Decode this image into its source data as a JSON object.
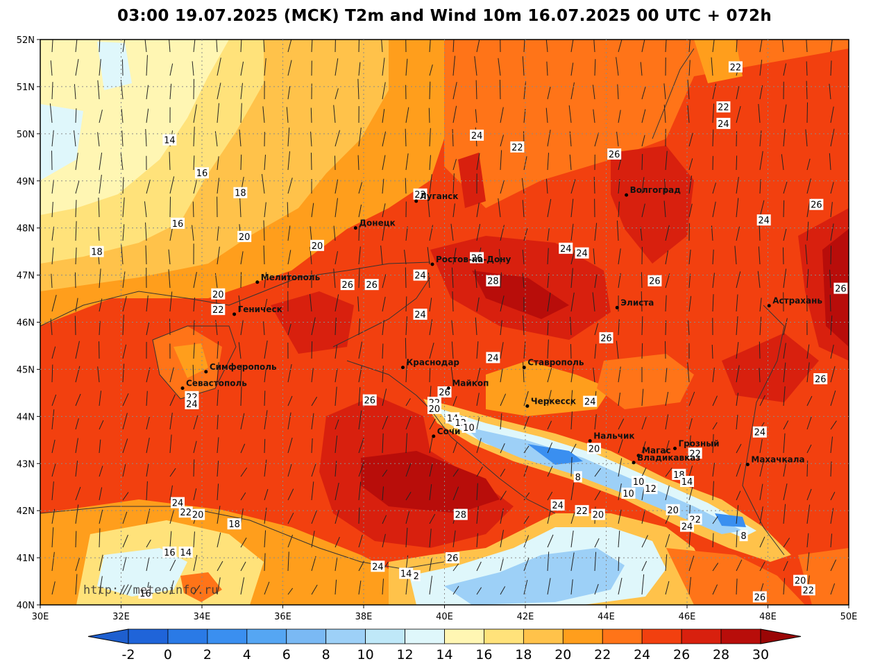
{
  "title": "03:00 19.07.2025 (MCK) T2m and Wind 10m 16.07.2025 00 UTC + 072h",
  "credit": "http://meteoinfo.ru",
  "lat_labels": [
    "52N",
    "51N",
    "50N",
    "49N",
    "48N",
    "47N",
    "46N",
    "45N",
    "44N",
    "43N",
    "42N",
    "41N",
    "40N"
  ],
  "lon_labels": [
    "30E",
    "32E",
    "34E",
    "36E",
    "38E",
    "40E",
    "42E",
    "44E",
    "46E",
    "48E",
    "50E"
  ],
  "cities": [
    {
      "name": "Луганск",
      "lon": 39.3,
      "lat": 48.57
    },
    {
      "name": "Донецк",
      "lon": 37.8,
      "lat": 48.0
    },
    {
      "name": "Волгоград",
      "lon": 44.5,
      "lat": 48.7
    },
    {
      "name": "Ростов-на-Дону",
      "lon": 39.7,
      "lat": 47.23
    },
    {
      "name": "Мелитополь",
      "lon": 35.37,
      "lat": 46.85
    },
    {
      "name": "Геническ",
      "lon": 34.8,
      "lat": 46.17
    },
    {
      "name": "Элиста",
      "lon": 44.27,
      "lat": 46.31
    },
    {
      "name": "Астрахань",
      "lon": 48.03,
      "lat": 46.35
    },
    {
      "name": "Симферополь",
      "lon": 34.1,
      "lat": 44.95
    },
    {
      "name": "Краснодар",
      "lon": 38.97,
      "lat": 45.04
    },
    {
      "name": "Ставрополь",
      "lon": 41.97,
      "lat": 45.04
    },
    {
      "name": "Севастополь",
      "lon": 33.52,
      "lat": 44.6
    },
    {
      "name": "Майкоп",
      "lon": 40.1,
      "lat": 44.6
    },
    {
      "name": "Черкесск",
      "lon": 42.05,
      "lat": 44.22
    },
    {
      "name": "Нальчик",
      "lon": 43.6,
      "lat": 43.48
    },
    {
      "name": "Магас",
      "lon": 44.8,
      "lat": 43.17
    },
    {
      "name": "Грозный",
      "lon": 45.7,
      "lat": 43.32
    },
    {
      "name": "Владикавказ",
      "lon": 44.68,
      "lat": 43.02
    },
    {
      "name": "Махачкала",
      "lon": 47.5,
      "lat": 42.98
    },
    {
      "name": "Сочи",
      "lon": 39.73,
      "lat": 43.58
    }
  ],
  "contour_labels": [
    {
      "t": "14",
      "lon": 33.2,
      "lat": 49.87
    },
    {
      "t": "16",
      "lon": 34.0,
      "lat": 49.17
    },
    {
      "t": "18",
      "lon": 34.95,
      "lat": 48.75
    },
    {
      "t": "16",
      "lon": 33.4,
      "lat": 48.1
    },
    {
      "t": "18",
      "lon": 31.4,
      "lat": 47.5
    },
    {
      "t": "20",
      "lon": 35.05,
      "lat": 47.82
    },
    {
      "t": "20",
      "lon": 36.85,
      "lat": 47.63
    },
    {
      "t": "20",
      "lon": 34.4,
      "lat": 46.6
    },
    {
      "t": "22",
      "lon": 34.4,
      "lat": 46.27
    },
    {
      "t": "26",
      "lon": 37.6,
      "lat": 46.8
    },
    {
      "t": "26",
      "lon": 38.2,
      "lat": 46.8
    },
    {
      "t": "24",
      "lon": 39.4,
      "lat": 47.0
    },
    {
      "t": "24",
      "lon": 39.4,
      "lat": 46.17
    },
    {
      "t": "22",
      "lon": 39.4,
      "lat": 48.72
    },
    {
      "t": "24",
      "lon": 40.8,
      "lat": 49.97
    },
    {
      "t": "22",
      "lon": 41.8,
      "lat": 49.72
    },
    {
      "t": "26",
      "lon": 40.8,
      "lat": 47.37
    },
    {
      "t": "28",
      "lon": 41.2,
      "lat": 46.88
    },
    {
      "t": "24",
      "lon": 43.0,
      "lat": 47.57
    },
    {
      "t": "24",
      "lon": 43.4,
      "lat": 47.47
    },
    {
      "t": "26",
      "lon": 44.2,
      "lat": 49.57
    },
    {
      "t": "22",
      "lon": 46.9,
      "lat": 50.57
    },
    {
      "t": "24",
      "lon": 46.9,
      "lat": 50.22
    },
    {
      "t": "22",
      "lon": 47.2,
      "lat": 51.42
    },
    {
      "t": "26",
      "lon": 49.2,
      "lat": 48.5
    },
    {
      "t": "24",
      "lon": 47.9,
      "lat": 48.17
    },
    {
      "t": "26",
      "lon": 45.2,
      "lat": 46.88
    },
    {
      "t": "26",
      "lon": 49.8,
      "lat": 46.72
    },
    {
      "t": "26",
      "lon": 44.0,
      "lat": 45.67
    },
    {
      "t": "24",
      "lon": 41.2,
      "lat": 45.25
    },
    {
      "t": "24",
      "lon": 43.6,
      "lat": 44.32
    },
    {
      "t": "26",
      "lon": 49.3,
      "lat": 44.8
    },
    {
      "t": "24",
      "lon": 47.8,
      "lat": 43.67
    },
    {
      "t": "22",
      "lon": 46.2,
      "lat": 43.22
    },
    {
      "t": "20",
      "lon": 43.7,
      "lat": 43.32
    },
    {
      "t": "8",
      "lon": 43.3,
      "lat": 42.72
    },
    {
      "t": "10",
      "lon": 44.8,
      "lat": 42.62
    },
    {
      "t": "12",
      "lon": 45.1,
      "lat": 42.47
    },
    {
      "t": "10",
      "lon": 44.55,
      "lat": 42.37
    },
    {
      "t": "18",
      "lon": 45.8,
      "lat": 42.77
    },
    {
      "t": "14",
      "lon": 46.0,
      "lat": 42.62
    },
    {
      "t": "20",
      "lon": 45.65,
      "lat": 42.02
    },
    {
      "t": "22",
      "lon": 46.2,
      "lat": 41.82
    },
    {
      "t": "24",
      "lon": 46.0,
      "lat": 41.67
    },
    {
      "t": "8",
      "lon": 47.4,
      "lat": 41.47
    },
    {
      "t": "24",
      "lon": 42.8,
      "lat": 42.12
    },
    {
      "t": "22",
      "lon": 43.4,
      "lat": 42.0
    },
    {
      "t": "20",
      "lon": 43.8,
      "lat": 41.92
    },
    {
      "t": "28",
      "lon": 40.4,
      "lat": 41.92
    },
    {
      "t": "26",
      "lon": 40.2,
      "lat": 41.0
    },
    {
      "t": "24",
      "lon": 38.35,
      "lat": 40.82
    },
    {
      "t": "14",
      "lon": 39.05,
      "lat": 40.67
    },
    {
      "t": "2",
      "lon": 39.3,
      "lat": 40.62
    },
    {
      "t": "20",
      "lon": 48.8,
      "lat": 40.52
    },
    {
      "t": "22",
      "lon": 49.0,
      "lat": 40.32
    },
    {
      "t": "26",
      "lon": 47.8,
      "lat": 40.17
    },
    {
      "t": "24",
      "lon": 33.4,
      "lat": 42.17
    },
    {
      "t": "22",
      "lon": 33.6,
      "lat": 41.97
    },
    {
      "t": "20",
      "lon": 33.9,
      "lat": 41.92
    },
    {
      "t": "18",
      "lon": 34.8,
      "lat": 41.72
    },
    {
      "t": "16",
      "lon": 33.2,
      "lat": 41.12
    },
    {
      "t": "14",
      "lon": 33.6,
      "lat": 41.12
    },
    {
      "t": "16",
      "lon": 32.6,
      "lat": 40.25
    },
    {
      "t": "22",
      "lon": 33.75,
      "lat": 44.42
    },
    {
      "t": "24",
      "lon": 33.75,
      "lat": 44.27
    },
    {
      "t": "26",
      "lon": 38.15,
      "lat": 44.35
    },
    {
      "t": "26",
      "lon": 40.0,
      "lat": 44.52
    },
    {
      "t": "22",
      "lon": 39.75,
      "lat": 44.3
    },
    {
      "t": "20",
      "lon": 39.75,
      "lat": 44.17
    },
    {
      "t": "14",
      "lon": 40.2,
      "lat": 43.97
    },
    {
      "t": "12",
      "lon": 40.4,
      "lat": 43.87
    },
    {
      "t": "10",
      "lon": 40.6,
      "lat": 43.77
    }
  ],
  "colorbar": {
    "ticks": [
      "-2",
      "0",
      "2",
      "4",
      "6",
      "8",
      "10",
      "12",
      "14",
      "16",
      "18",
      "20",
      "22",
      "24",
      "26",
      "28",
      "30"
    ],
    "colors": [
      "#1f64d9",
      "#2a7ae6",
      "#3a8ff0",
      "#55a6f3",
      "#7ab9f4",
      "#9dd0f7",
      "#bfe8f8",
      "#dff7fb",
      "#fff6b3",
      "#ffe27a",
      "#ffc24a",
      "#ff9e1c",
      "#ff7418",
      "#f2400f",
      "#d8200e",
      "#b80d0a"
    ],
    "low_color": "#1e5fcf",
    "high_color": "#9a0606"
  }
}
